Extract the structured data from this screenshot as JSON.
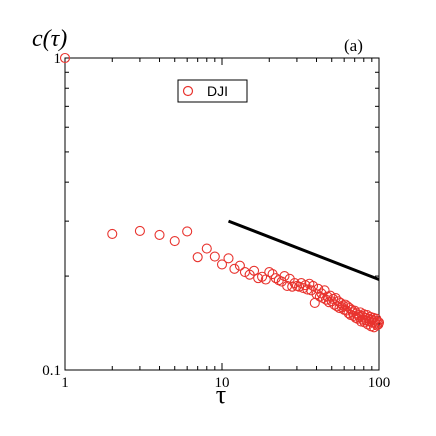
{
  "chart_data": {
    "type": "scatter",
    "panel_label": "(a)",
    "ylabel": "c(τ)",
    "xlabel": "τ",
    "x_scale": "log",
    "y_scale": "log",
    "xlim": [
      1,
      100
    ],
    "ylim": [
      0.1,
      1
    ],
    "x_ticks": [
      {
        "value": 1,
        "label": "1"
      },
      {
        "value": 10,
        "label": "10"
      },
      {
        "value": 100,
        "label": "100"
      }
    ],
    "y_ticks": [
      {
        "value": 0.1,
        "label": "0.1"
      },
      {
        "value": 1,
        "label": "1"
      }
    ],
    "legend_position": "top-center",
    "series": [
      {
        "name": "DJI",
        "marker": "open-circle",
        "color": "#e8332e",
        "points": [
          [
            1,
            1.0
          ],
          [
            2,
            0.273
          ],
          [
            3,
            0.279
          ],
          [
            4,
            0.271
          ],
          [
            5,
            0.259
          ],
          [
            6,
            0.278
          ],
          [
            7,
            0.23
          ],
          [
            8,
            0.245
          ],
          [
            9,
            0.231
          ],
          [
            10,
            0.218
          ],
          [
            11,
            0.228
          ],
          [
            12,
            0.211
          ],
          [
            13,
            0.216
          ],
          [
            14,
            0.206
          ],
          [
            15,
            0.202
          ],
          [
            16,
            0.208
          ],
          [
            17,
            0.197
          ],
          [
            18,
            0.199
          ],
          [
            19,
            0.195
          ],
          [
            20,
            0.206
          ],
          [
            21,
            0.203
          ],
          [
            22,
            0.197
          ],
          [
            23,
            0.194
          ],
          [
            24,
            0.192
          ],
          [
            25,
            0.2
          ],
          [
            26,
            0.186
          ],
          [
            27,
            0.196
          ],
          [
            28,
            0.185
          ],
          [
            29,
            0.19
          ],
          [
            30,
            0.186
          ],
          [
            31,
            0.185
          ],
          [
            32,
            0.19
          ],
          [
            33,
            0.183
          ],
          [
            34,
            0.187
          ],
          [
            35,
            0.181
          ],
          [
            36,
            0.189
          ],
          [
            37,
            0.18
          ],
          [
            38,
            0.186
          ],
          [
            39,
            0.164
          ],
          [
            40,
            0.175
          ],
          [
            41,
            0.182
          ],
          [
            42,
            0.172
          ],
          [
            43,
            0.176
          ],
          [
            44,
            0.17
          ],
          [
            45,
            0.18
          ],
          [
            46,
            0.168
          ],
          [
            47,
            0.172
          ],
          [
            48,
            0.165
          ],
          [
            49,
            0.173
          ],
          [
            50,
            0.166
          ],
          [
            51,
            0.169
          ],
          [
            52,
            0.162
          ],
          [
            53,
            0.17
          ],
          [
            54,
            0.16
          ],
          [
            55,
            0.166
          ],
          [
            56,
            0.158
          ],
          [
            57,
            0.164
          ],
          [
            58,
            0.159
          ],
          [
            59,
            0.161
          ],
          [
            60,
            0.156
          ],
          [
            61,
            0.162
          ],
          [
            62,
            0.155
          ],
          [
            63,
            0.16
          ],
          [
            64,
            0.152
          ],
          [
            65,
            0.158
          ],
          [
            66,
            0.15
          ],
          [
            67,
            0.156
          ],
          [
            68,
            0.153
          ],
          [
            69,
            0.149
          ],
          [
            70,
            0.155
          ],
          [
            71,
            0.147
          ],
          [
            72,
            0.152
          ],
          [
            73,
            0.146
          ],
          [
            74,
            0.15
          ],
          [
            75,
            0.148
          ],
          [
            76,
            0.153
          ],
          [
            77,
            0.143
          ],
          [
            78,
            0.149
          ],
          [
            79,
            0.145
          ],
          [
            80,
            0.151
          ],
          [
            81,
            0.142
          ],
          [
            82,
            0.147
          ],
          [
            83,
            0.144
          ],
          [
            84,
            0.15
          ],
          [
            85,
            0.14
          ],
          [
            86,
            0.146
          ],
          [
            87,
            0.143
          ],
          [
            88,
            0.148
          ],
          [
            89,
            0.138
          ],
          [
            90,
            0.145
          ],
          [
            91,
            0.142
          ],
          [
            92,
            0.147
          ],
          [
            93,
            0.137
          ],
          [
            94,
            0.144
          ],
          [
            95,
            0.141
          ],
          [
            96,
            0.146
          ],
          [
            97,
            0.139
          ],
          [
            98,
            0.143
          ],
          [
            99,
            0.14
          ],
          [
            100,
            0.142
          ]
        ]
      }
    ],
    "reference_line": {
      "color": "#000000",
      "points": [
        [
          11,
          0.3
        ],
        [
          100,
          0.195
        ]
      ]
    }
  }
}
